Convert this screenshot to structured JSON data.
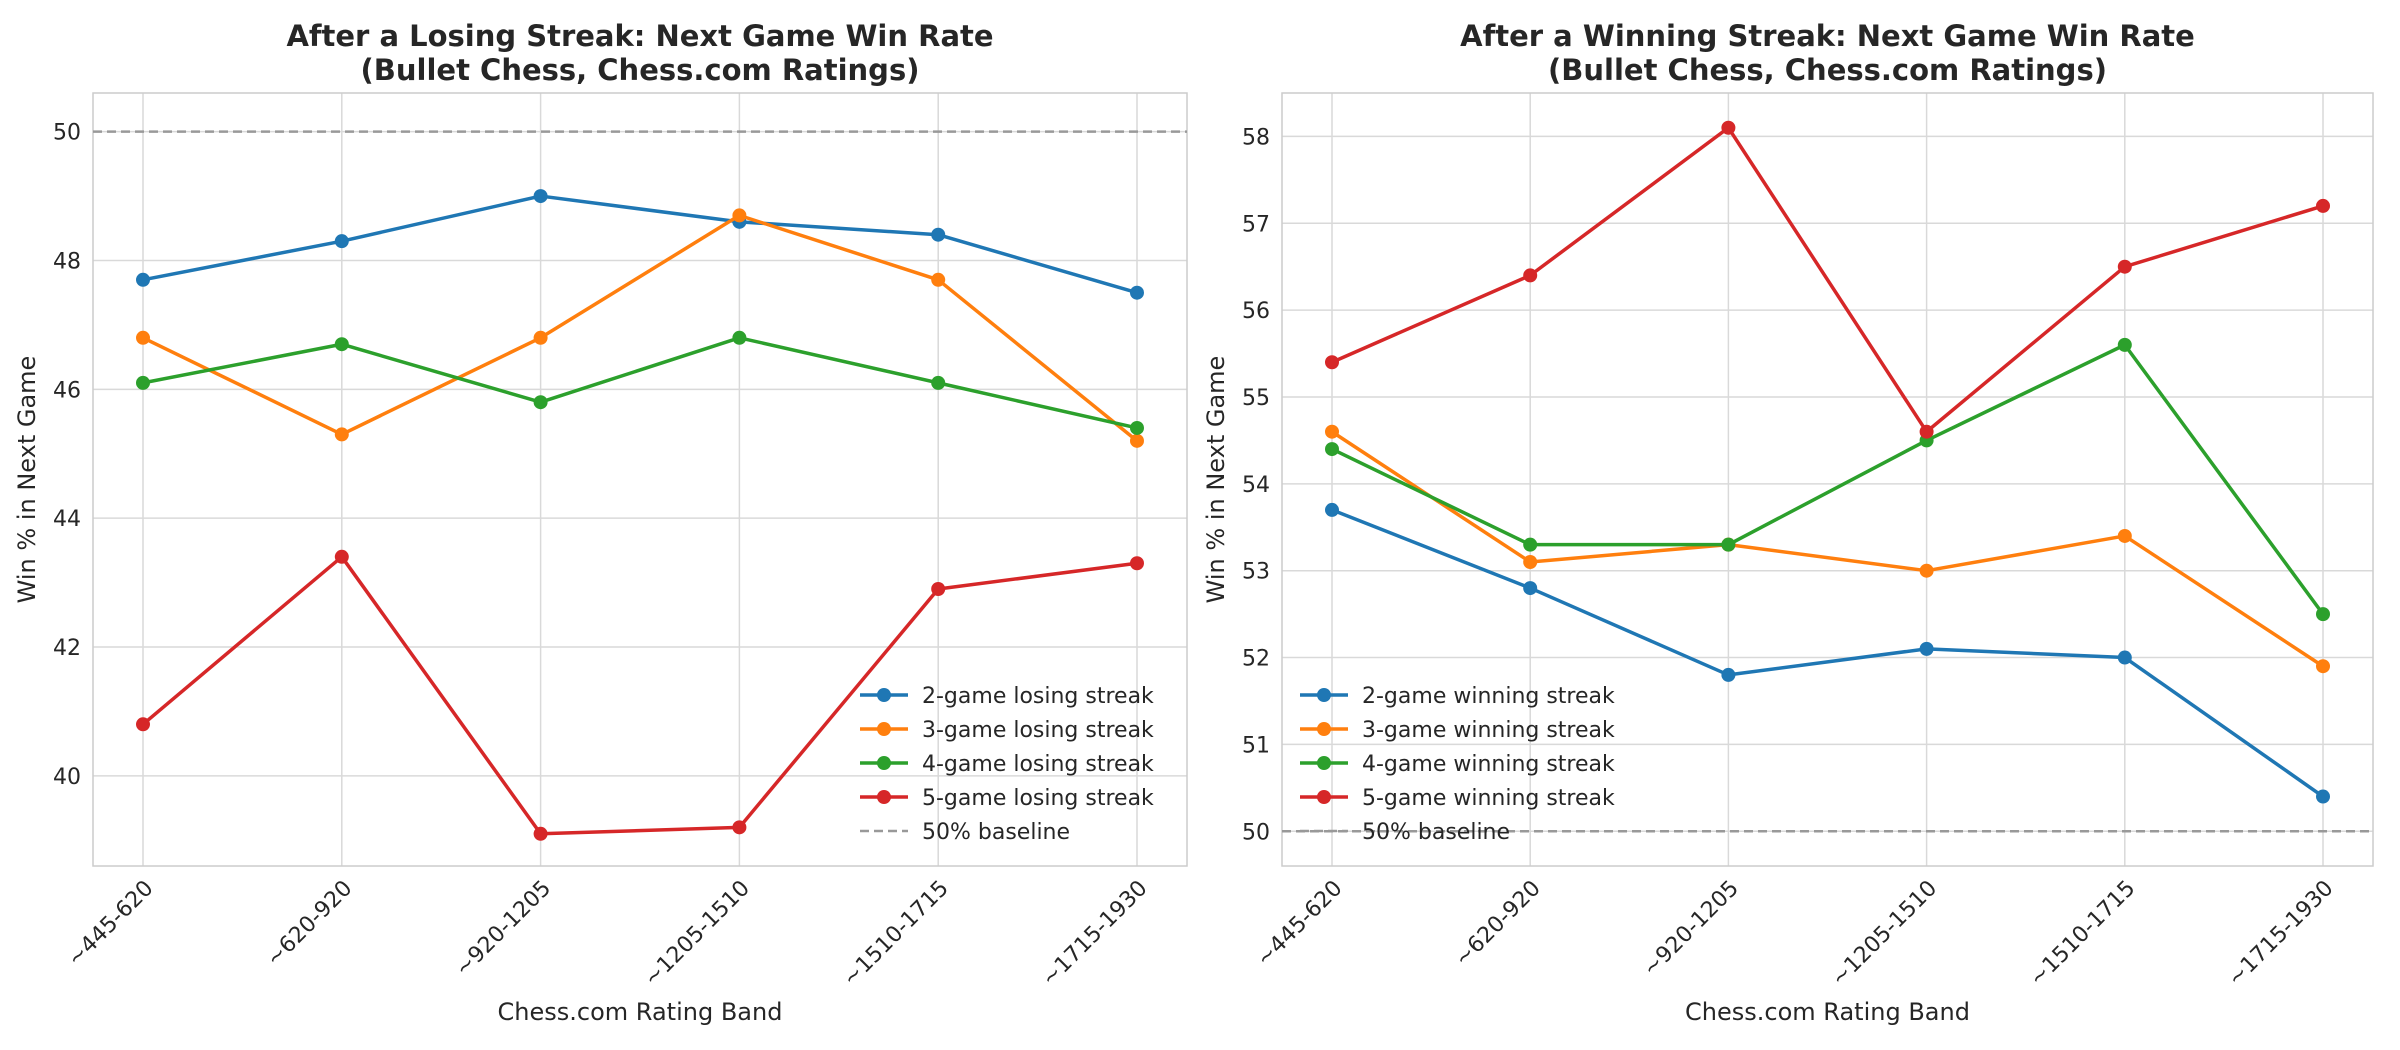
{
  "chart_data": [
    {
      "type": "line",
      "title": "After a Losing Streak: Next Game Win Rate\n(Bullet Chess, Chess.com Ratings)",
      "xlabel": "Chess.com Rating Band",
      "ylabel": "Win % in Next Game",
      "categories": [
        "~445-620",
        "~620-920",
        "~920-1205",
        "~1205-1510",
        "~1510-1715",
        "~1715-1930"
      ],
      "ylim": [
        38.6,
        50.6
      ],
      "yticks": [
        40,
        42,
        44,
        46,
        48,
        50
      ],
      "grid": true,
      "legend_position": "lower-right",
      "baseline": {
        "value": 50,
        "name": "50% baseline",
        "color": "#999999"
      },
      "series": [
        {
          "name": "2-game losing streak",
          "color": "#1f77b4",
          "values": [
            47.7,
            48.3,
            49.0,
            48.6,
            48.4,
            47.5
          ]
        },
        {
          "name": "3-game losing streak",
          "color": "#ff7f0e",
          "values": [
            46.8,
            45.3,
            46.8,
            48.7,
            47.7,
            45.2
          ]
        },
        {
          "name": "4-game losing streak",
          "color": "#2ca02c",
          "values": [
            46.1,
            46.7,
            45.8,
            46.8,
            46.1,
            45.4
          ]
        },
        {
          "name": "5-game losing streak",
          "color": "#d62728",
          "values": [
            40.8,
            43.4,
            39.1,
            39.2,
            42.9,
            43.3
          ]
        }
      ]
    },
    {
      "type": "line",
      "title": "After a Winning Streak: Next Game Win Rate\n(Bullet Chess, Chess.com Ratings)",
      "xlabel": "Chess.com Rating Band",
      "ylabel": "Win % in Next Game",
      "categories": [
        "~445-620",
        "~620-920",
        "~920-1205",
        "~1205-1510",
        "~1510-1715",
        "~1715-1930"
      ],
      "ylim": [
        49.6,
        58.5
      ],
      "yticks": [
        50,
        51,
        52,
        53,
        54,
        55,
        56,
        57,
        58
      ],
      "grid": true,
      "legend_position": "lower-left",
      "baseline": {
        "value": 50,
        "name": "50% baseline",
        "color": "#999999"
      },
      "series": [
        {
          "name": "2-game winning streak",
          "color": "#1f77b4",
          "values": [
            53.7,
            52.8,
            51.8,
            52.1,
            52.0,
            50.4
          ]
        },
        {
          "name": "3-game winning streak",
          "color": "#ff7f0e",
          "values": [
            54.6,
            53.1,
            53.3,
            53.0,
            53.4,
            51.9
          ]
        },
        {
          "name": "4-game winning streak",
          "color": "#2ca02c",
          "values": [
            54.4,
            53.3,
            53.3,
            54.5,
            55.6,
            52.5
          ]
        },
        {
          "name": "5-game winning streak",
          "color": "#d62728",
          "values": [
            55.4,
            56.4,
            58.1,
            54.6,
            56.5,
            57.2
          ]
        }
      ]
    }
  ]
}
